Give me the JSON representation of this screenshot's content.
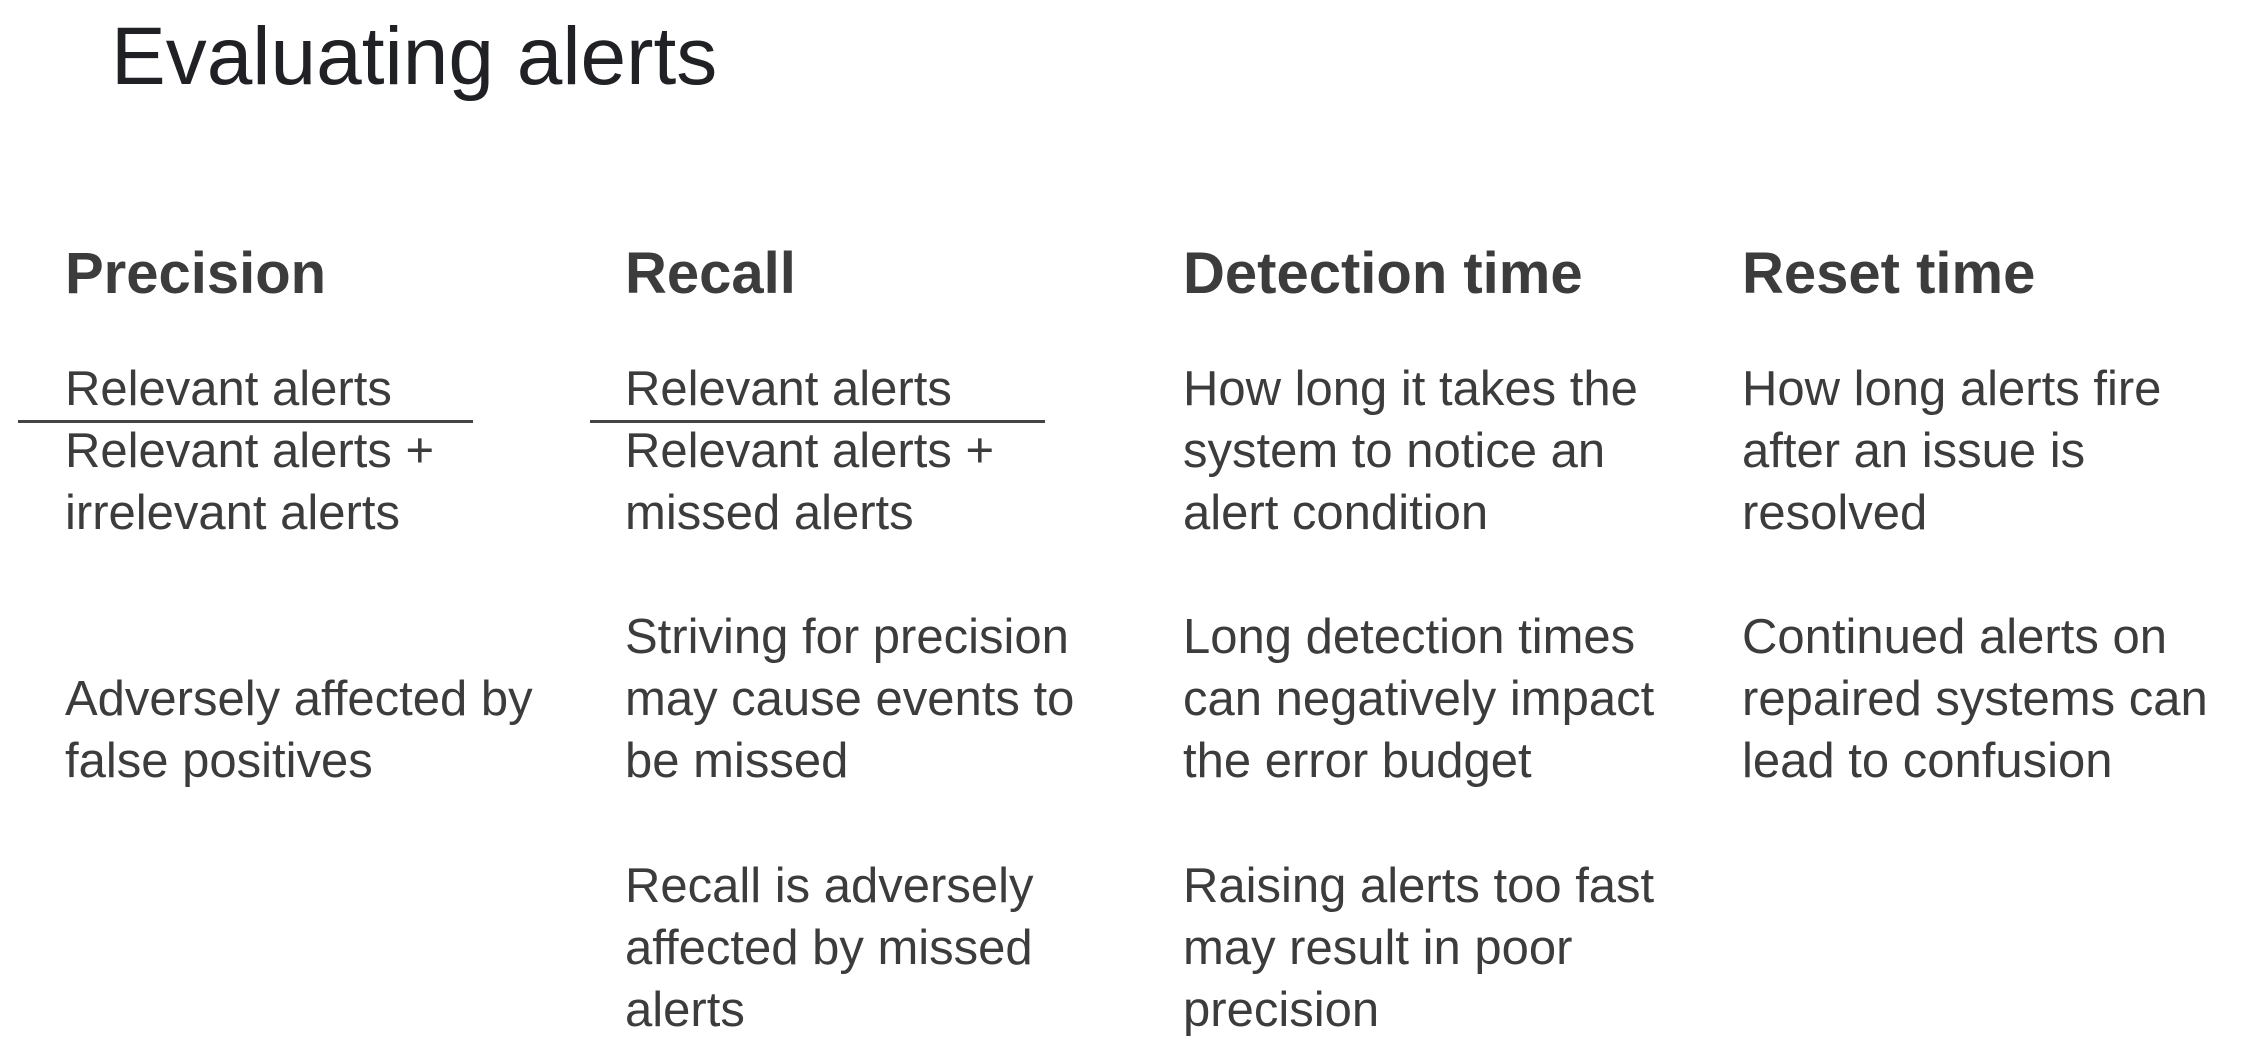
{
  "slide": {
    "title": "Evaluating alerts"
  },
  "columns": [
    {
      "heading": "Precision",
      "numerator": "Relevant alerts",
      "denominator": "Relevant alerts +\nirrelevant alerts",
      "note": "Adversely affected by\nfalse positives"
    },
    {
      "heading": "Recall",
      "numerator": "Relevant alerts",
      "denominator": "Relevant alerts +\nmissed alerts",
      "note1": "Striving for precision\nmay cause events to\nbe missed",
      "note2": "Recall is adversely\naffected by missed\nalerts"
    },
    {
      "heading": "Detection time",
      "definition": "How long it takes the\nsystem to notice an\nalert condition",
      "note1": "Long detection times\ncan negatively impact\nthe error budget",
      "note2": "Raising alerts too fast\nmay result in poor\nprecision"
    },
    {
      "heading": "Reset time",
      "definition": "How long alerts fire\nafter an issue is\nresolved",
      "note1": "Continued alerts on\nrepaired systems can\nlead to confusion"
    }
  ]
}
